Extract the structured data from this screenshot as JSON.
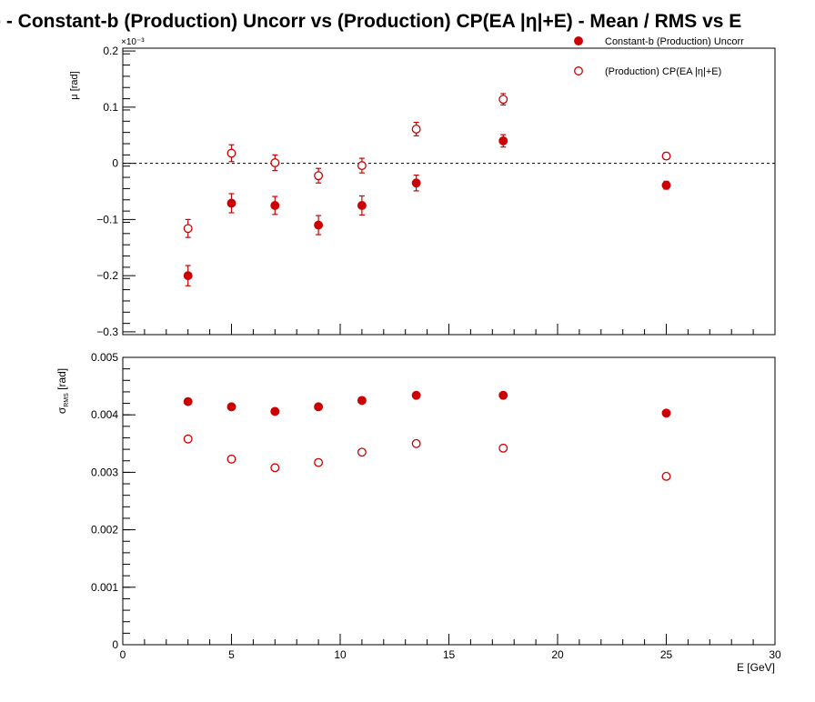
{
  "title": "φ  -  Constant-b (Production) Uncorr vs (Production) CP(EA |η|+E)  -  Mean / RMS vs E",
  "colors": {
    "series": "#cc0000",
    "axis": "#000000",
    "background": "#ffffff"
  },
  "chart_data": [
    {
      "type": "scatter",
      "panel": "top",
      "ylabel": "μ  [rad]",
      "exponent_label": "×10⁻³",
      "xlim": [
        0,
        30
      ],
      "ylim": [
        -0.305,
        0.205
      ],
      "y_ticks": [
        -0.3,
        -0.2,
        -0.1,
        0,
        0.1,
        0.2
      ],
      "y_tick_labels": [
        "−0.3",
        "−0.2",
        "−0.1",
        "0",
        "0.1",
        "0.2"
      ],
      "reference_line": 0,
      "legend_position": "top-right",
      "x": [
        3,
        5,
        7,
        9,
        11,
        13.5,
        17.5,
        25
      ],
      "series": [
        {
          "name": "Constant-b (Production) Uncorr",
          "marker": "filled-circle",
          "values": [
            -0.2,
            -0.071,
            -0.075,
            -0.11,
            -0.075,
            -0.035,
            0.04,
            -0.039
          ],
          "errors": [
            0.018,
            0.017,
            0.016,
            0.017,
            0.017,
            0.014,
            0.011,
            0.007
          ]
        },
        {
          "name": "(Production) CP(EA |η|+E)",
          "marker": "open-circle",
          "values": [
            -0.116,
            0.018,
            0.001,
            -0.022,
            -0.004,
            0.061,
            0.114,
            0.013
          ],
          "errors": [
            0.016,
            0.015,
            0.014,
            0.013,
            0.013,
            0.012,
            0.01,
            0.006
          ]
        }
      ]
    },
    {
      "type": "scatter",
      "panel": "bottom",
      "ylabel": "σ",
      "ylabel_sub": "RMS",
      "ylabel_unit": "[rad]",
      "xlabel": "E  [GeV]",
      "xlim": [
        0,
        30
      ],
      "ylim": [
        0,
        0.005
      ],
      "x_ticks": [
        0,
        5,
        10,
        15,
        20,
        25,
        30
      ],
      "x_tick_labels": [
        "0",
        "5",
        "10",
        "15",
        "20",
        "25",
        "30"
      ],
      "y_ticks": [
        0,
        0.001,
        0.002,
        0.003,
        0.004,
        0.005
      ],
      "y_tick_labels": [
        "0",
        "0.001",
        "0.002",
        "0.003",
        "0.004",
        "0.005"
      ],
      "x": [
        3,
        5,
        7,
        9,
        11,
        13.5,
        17.5,
        25
      ],
      "series": [
        {
          "name": "Constant-b (Production) Uncorr",
          "marker": "filled-circle",
          "values": [
            0.00423,
            0.00414,
            0.00406,
            0.00414,
            0.00425,
            0.00434,
            0.00434,
            0.00403
          ]
        },
        {
          "name": "(Production) CP(EA |η|+E)",
          "marker": "open-circle",
          "values": [
            0.00358,
            0.00323,
            0.00308,
            0.00317,
            0.00335,
            0.0035,
            0.00342,
            0.00293
          ]
        }
      ]
    }
  ]
}
